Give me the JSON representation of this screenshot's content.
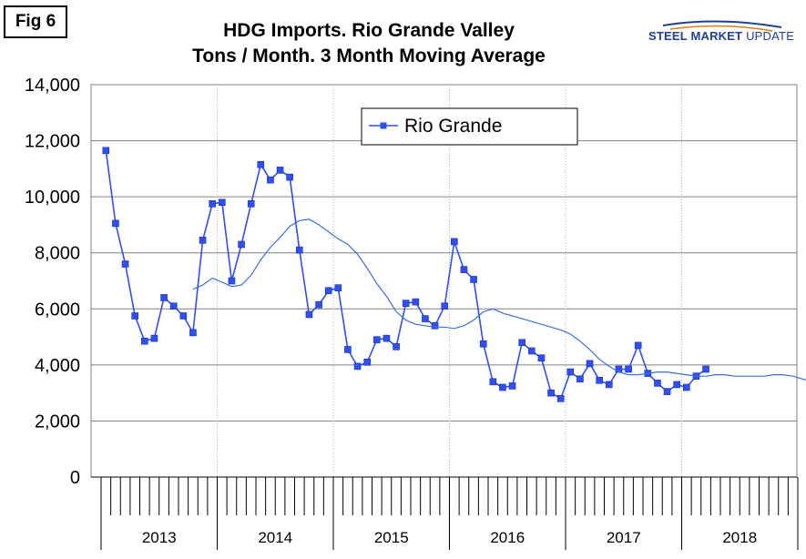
{
  "figure_label": "Fig 6",
  "logo": {
    "word1": "STEEL MARKET",
    "word2": "UPDATE",
    "colors": {
      "primary": "#1f3f8f",
      "accent": "#e07b1a"
    }
  },
  "chart_data": {
    "type": "line",
    "title_lines": [
      "HDG Imports. Rio Grande Valley",
      "Tons / Month. 3 Month Moving Average"
    ],
    "ylim": [
      0,
      14000
    ],
    "y_ticks": [
      "0",
      "2,000",
      "4,000",
      "6,000",
      "8,000",
      "10,000",
      "12,000",
      "14,000"
    ],
    "years": [
      "2013",
      "2014",
      "2015",
      "2016",
      "2017",
      "2018"
    ],
    "months_total": 72,
    "grid": true,
    "legend": {
      "position": "top-center",
      "entries": [
        "Rio Grande"
      ]
    },
    "series": [
      {
        "name": "Rio Grande",
        "color": "#2f4ff0",
        "marker": "square",
        "values": [
          11650,
          9050,
          7600,
          5750,
          4850,
          4950,
          6400,
          6100,
          5750,
          5150,
          8450,
          9750,
          9800,
          7000,
          8300,
          9750,
          11150,
          10600,
          10950,
          10700,
          8100,
          5800,
          6150,
          6650,
          6750,
          4550,
          3950,
          4100,
          4900,
          4950,
          4650,
          6200,
          6250,
          5650,
          5400,
          6100,
          8400,
          7400,
          7050,
          4750,
          3400,
          3200,
          3250,
          4800,
          4500,
          4250,
          3000,
          2800,
          3750,
          3500,
          4050,
          3450,
          3300,
          3850,
          3850,
          4700,
          3700,
          3350,
          3050,
          3300,
          3200,
          3600,
          3850
        ]
      },
      {
        "name": "",
        "color": "#3a6fe0",
        "marker": "none",
        "start_index": 9,
        "values": [
          6700,
          6850,
          7100,
          6950,
          6800,
          6850,
          7200,
          7750,
          8200,
          8550,
          8950,
          9150,
          9200,
          9000,
          8750,
          8500,
          8300,
          7950,
          7450,
          6900,
          6450,
          5900,
          5600,
          5450,
          5400,
          5350,
          5350,
          5300,
          5400,
          5600,
          5900,
          6000,
          5850,
          5750,
          5650,
          5550,
          5450,
          5350,
          5250,
          5100,
          4850,
          4550,
          4200,
          3950,
          3750,
          3650,
          3650,
          3700,
          3750,
          3750,
          3700,
          3650,
          3600,
          3600,
          3650,
          3650,
          3600,
          3600,
          3600,
          3600,
          3650,
          3650,
          3600,
          3500,
          3400,
          3400
        ]
      }
    ]
  }
}
